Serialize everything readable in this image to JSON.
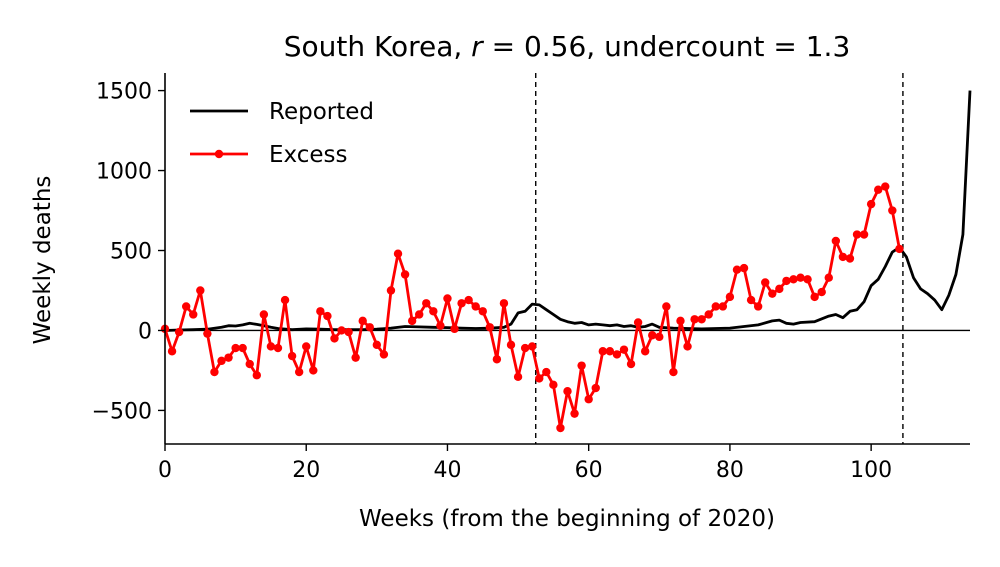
{
  "chart_data": {
    "type": "line",
    "title_prefix": "South Korea, ",
    "title_r_sym": "r",
    "title_r_rest": " = 0.56, undercount = 1.3",
    "xlabel": "Weeks (from the beginning of 2020)",
    "ylabel": "Weekly deaths",
    "xlim": [
      0,
      114
    ],
    "ylim": [
      -710,
      1610
    ],
    "xticks": [
      0,
      20,
      40,
      60,
      80,
      100
    ],
    "yticks": [
      -500,
      0,
      500,
      1000,
      1500
    ],
    "ytick_labels": [
      "−500",
      "0",
      "500",
      "1000",
      "1500"
    ],
    "vlines": [
      52.5,
      104.5
    ],
    "hline": 0,
    "legend": {
      "position": "upper-left",
      "entries": [
        {
          "label": "Reported",
          "color": "#000000",
          "marker": "none"
        },
        {
          "label": "Excess",
          "color": "#ff0000",
          "marker": "circle"
        }
      ]
    },
    "series": [
      {
        "name": "Reported",
        "color": "#000000",
        "x": [
          0,
          2,
          4,
          6,
          8,
          9,
          10,
          11,
          12,
          13,
          14,
          15,
          16,
          18,
          20,
          22,
          24,
          26,
          28,
          30,
          32,
          34,
          36,
          38,
          40,
          42,
          44,
          46,
          48,
          49,
          50,
          51,
          52,
          53,
          54,
          55,
          56,
          57,
          58,
          59,
          60,
          61,
          62,
          63,
          64,
          65,
          66,
          67,
          68,
          69,
          70,
          72,
          74,
          76,
          78,
          80,
          82,
          84,
          86,
          87,
          88,
          89,
          90,
          92,
          94,
          95,
          96,
          97,
          98,
          99,
          100,
          101,
          102,
          103,
          104,
          105,
          106,
          107,
          108,
          109,
          110,
          111,
          112,
          113,
          114
        ],
        "y": [
          0,
          3,
          5,
          8,
          20,
          30,
          28,
          35,
          45,
          38,
          30,
          20,
          12,
          5,
          10,
          8,
          5,
          5,
          5,
          8,
          15,
          25,
          22,
          20,
          18,
          15,
          12,
          14,
          20,
          40,
          110,
          120,
          165,
          160,
          130,
          100,
          70,
          55,
          45,
          50,
          35,
          40,
          35,
          30,
          35,
          25,
          30,
          20,
          25,
          40,
          20,
          15,
          12,
          10,
          12,
          15,
          25,
          35,
          60,
          65,
          45,
          40,
          50,
          55,
          90,
          100,
          80,
          120,
          130,
          180,
          280,
          320,
          400,
          490,
          520,
          460,
          330,
          260,
          230,
          190,
          130,
          220,
          350,
          600,
          1500
        ]
      },
      {
        "name": "Excess",
        "color": "#ff0000",
        "x": [
          0,
          1,
          2,
          3,
          4,
          5,
          6,
          7,
          8,
          9,
          10,
          11,
          12,
          13,
          14,
          15,
          16,
          17,
          18,
          19,
          20,
          21,
          22,
          23,
          24,
          25,
          26,
          27,
          28,
          29,
          30,
          31,
          32,
          33,
          34,
          35,
          36,
          37,
          38,
          39,
          40,
          41,
          42,
          43,
          44,
          45,
          46,
          47,
          48,
          49,
          50,
          51,
          52,
          53,
          54,
          55,
          56,
          57,
          58,
          59,
          60,
          61,
          62,
          63,
          64,
          65,
          66,
          67,
          68,
          69,
          70,
          71,
          72,
          73,
          74,
          75,
          76,
          77,
          78,
          79,
          80,
          81,
          82,
          83,
          84,
          85,
          86,
          87,
          88,
          89,
          90,
          91,
          92,
          93,
          94,
          95,
          96,
          97,
          98,
          99,
          100,
          101,
          102,
          103,
          104
        ],
        "y": [
          10,
          -130,
          -10,
          150,
          100,
          250,
          -20,
          -260,
          -190,
          -170,
          -110,
          -110,
          -210,
          -280,
          100,
          -100,
          -110,
          190,
          -160,
          -260,
          -100,
          -250,
          120,
          90,
          -50,
          0,
          -10,
          -170,
          60,
          20,
          -90,
          -150,
          250,
          480,
          350,
          60,
          100,
          170,
          120,
          30,
          200,
          10,
          170,
          190,
          150,
          120,
          20,
          -180,
          170,
          -90,
          -290,
          -110,
          -100,
          -300,
          -260,
          -340,
          -610,
          -380,
          -520,
          -220,
          -430,
          -360,
          -130,
          -130,
          -150,
          -120,
          -210,
          50,
          -130,
          -30,
          -40,
          150,
          -260,
          60,
          -100,
          70,
          70,
          100,
          150,
          150,
          210,
          380,
          390,
          190,
          150,
          300,
          230,
          260,
          310,
          320,
          330,
          320,
          210,
          240,
          330,
          560,
          460,
          450,
          600,
          600,
          790,
          880,
          900,
          750,
          510
        ]
      }
    ]
  }
}
